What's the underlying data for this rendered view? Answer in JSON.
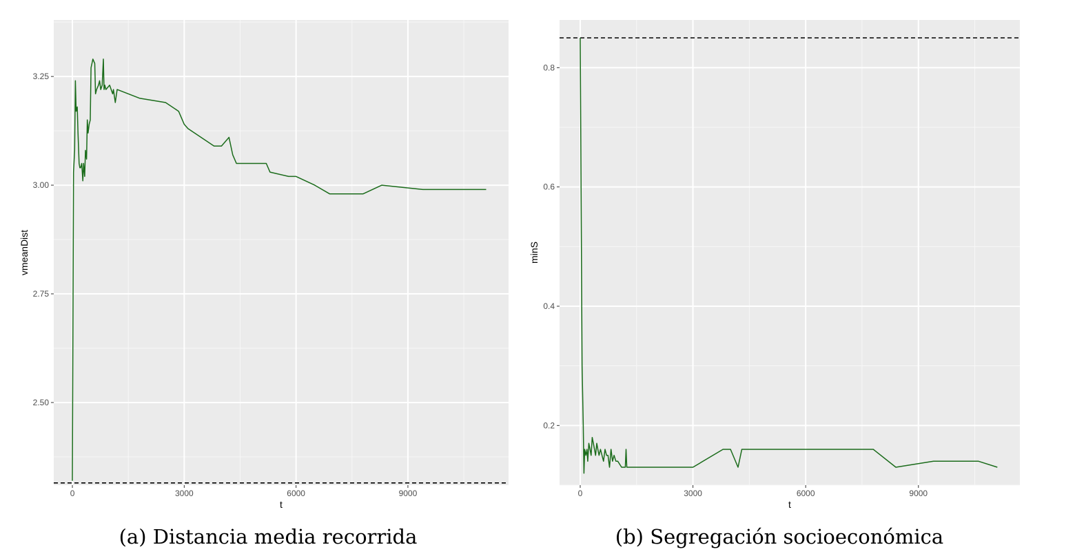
{
  "chart_data": [
    {
      "type": "line",
      "caption": "(a) Distancia media recorrida",
      "xlabel": "t",
      "ylabel": "vmeanDist",
      "xlim": [
        -500,
        11700
      ],
      "ylim": [
        2.31,
        3.38
      ],
      "xticks": [
        0,
        3000,
        6000,
        9000
      ],
      "xtick_labels": [
        "0",
        "3000",
        "6000",
        "9000"
      ],
      "yticks": [
        2.5,
        2.75,
        3.0,
        3.25
      ],
      "ytick_labels": [
        "2.50",
        "2.75",
        "3.00",
        "3.25"
      ],
      "grid": true,
      "line_color": "#1a6b1a",
      "reference_line": {
        "y": 2.315,
        "style": "dashed"
      },
      "series": [
        {
          "x": [
            0,
            30,
            60,
            80,
            100,
            130,
            150,
            180,
            200,
            220,
            250,
            280,
            300,
            330,
            350,
            380,
            400,
            420,
            450,
            480,
            500,
            550,
            600,
            620,
            650,
            700,
            730,
            760,
            800,
            830,
            850,
            870,
            900,
            1000,
            1080,
            1100,
            1150,
            1200,
            1800,
            2500,
            2850,
            3000,
            3100,
            3800,
            4000,
            4200,
            4300,
            4400,
            5200,
            5300,
            5800,
            6000,
            6500,
            6900,
            7000,
            7700,
            7800,
            8300,
            9400,
            11100
          ],
          "y": [
            2.32,
            3.03,
            3.08,
            3.24,
            3.17,
            3.18,
            3.12,
            3.05,
            3.04,
            3.04,
            3.05,
            3.01,
            3.05,
            3.02,
            3.08,
            3.06,
            3.15,
            3.12,
            3.14,
            3.15,
            3.27,
            3.29,
            3.28,
            3.21,
            3.22,
            3.23,
            3.24,
            3.22,
            3.23,
            3.29,
            3.22,
            3.23,
            3.22,
            3.23,
            3.21,
            3.22,
            3.19,
            3.22,
            3.2,
            3.19,
            3.17,
            3.14,
            3.13,
            3.09,
            3.09,
            3.11,
            3.07,
            3.05,
            3.05,
            3.03,
            3.02,
            3.02,
            3.0,
            2.98,
            2.98,
            2.98,
            2.98,
            3.0,
            2.99,
            2.99
          ]
        }
      ]
    },
    {
      "type": "line",
      "caption": "(b) Segregación socioeconómica",
      "xlabel": "t",
      "ylabel": "minS",
      "xlim": [
        -550,
        11700
      ],
      "ylim": [
        0.1,
        0.88
      ],
      "xticks": [
        0,
        3000,
        6000,
        9000
      ],
      "xtick_labels": [
        "0",
        "3000",
        "6000",
        "9000"
      ],
      "yticks": [
        0.2,
        0.4,
        0.6,
        0.8
      ],
      "ytick_labels": [
        "0.2",
        "0.4",
        "0.6",
        "0.8"
      ],
      "grid": true,
      "line_color": "#1a6b1a",
      "reference_line": {
        "y": 0.85,
        "style": "dashed"
      },
      "series": [
        {
          "x": [
            0,
            50,
            80,
            100,
            120,
            150,
            180,
            200,
            230,
            260,
            290,
            320,
            350,
            380,
            410,
            440,
            470,
            500,
            540,
            580,
            620,
            660,
            700,
            740,
            780,
            820,
            860,
            900,
            950,
            1000,
            1100,
            1200,
            1220,
            1240,
            3000,
            3800,
            4000,
            4200,
            4300,
            5600,
            7800,
            8400,
            9400,
            10600,
            11100
          ],
          "y": [
            0.85,
            0.3,
            0.2,
            0.12,
            0.16,
            0.15,
            0.16,
            0.14,
            0.17,
            0.16,
            0.15,
            0.18,
            0.17,
            0.16,
            0.15,
            0.17,
            0.16,
            0.15,
            0.16,
            0.15,
            0.14,
            0.16,
            0.15,
            0.15,
            0.13,
            0.16,
            0.14,
            0.15,
            0.14,
            0.14,
            0.13,
            0.13,
            0.16,
            0.13,
            0.13,
            0.16,
            0.16,
            0.13,
            0.16,
            0.16,
            0.16,
            0.13,
            0.14,
            0.14,
            0.13
          ]
        }
      ]
    }
  ]
}
